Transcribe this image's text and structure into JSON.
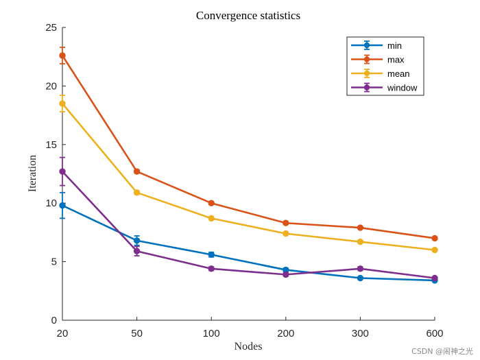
{
  "chart_data": {
    "type": "line",
    "title": "Convergence statistics",
    "xlabel": "Nodes",
    "ylabel": "Iteration",
    "categories": [
      "20",
      "50",
      "100",
      "200",
      "300",
      "600"
    ],
    "ylim": [
      0,
      25
    ],
    "yticks": [
      0,
      5,
      10,
      15,
      20,
      25
    ],
    "grid": false,
    "legend_position": "top-right",
    "series": [
      {
        "name": "min",
        "color": "#0072BD",
        "values": [
          9.8,
          6.8,
          5.6,
          4.3,
          3.6,
          3.4
        ],
        "errors": [
          1.1,
          0.4,
          0.2,
          0.15,
          0.1,
          0.1
        ]
      },
      {
        "name": "max",
        "color": "#D95319",
        "values": [
          22.6,
          12.7,
          10.0,
          8.3,
          7.9,
          7.0
        ],
        "errors": [
          0.7,
          0.15,
          0.1,
          0.1,
          0.1,
          0.1
        ]
      },
      {
        "name": "mean",
        "color": "#EDB120",
        "values": [
          18.5,
          10.9,
          8.7,
          7.4,
          6.7,
          6.0
        ],
        "errors": [
          0.7,
          0.15,
          0.1,
          0.1,
          0.1,
          0.1
        ]
      },
      {
        "name": "window",
        "color": "#7E2F8E",
        "values": [
          12.7,
          5.9,
          4.4,
          3.9,
          4.4,
          3.6
        ],
        "errors": [
          1.2,
          0.4,
          0.15,
          0.15,
          0.15,
          0.1
        ]
      }
    ]
  },
  "watermark": "CSDN @闹神之光"
}
